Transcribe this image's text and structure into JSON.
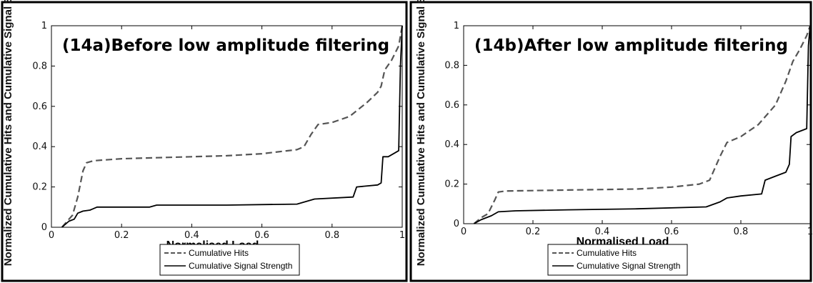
{
  "chart_data": [
    {
      "type": "line",
      "title": "(14a)Before low amplitude filtering",
      "xlabel": "Normalised Load",
      "ylabel": "Normalized Cumulative Hits and Cumulative Signal St",
      "xlim": [
        0,
        1
      ],
      "ylim": [
        0,
        1
      ],
      "xticks": [
        "0",
        "0.2",
        "0.4",
        "0.6",
        "0.8",
        "1"
      ],
      "yticks": [
        "0",
        "0.2",
        "0.4",
        "0.6",
        "0.8",
        "1"
      ],
      "grid": false,
      "legend_position": "bottom",
      "series": [
        {
          "name": "Cumulative Hits",
          "style": "dashed",
          "color": "#555555",
          "points": [
            [
              0.03,
              0
            ],
            [
              0.045,
              0.03
            ],
            [
              0.06,
              0.06
            ],
            [
              0.075,
              0.15
            ],
            [
              0.09,
              0.28
            ],
            [
              0.1,
              0.32
            ],
            [
              0.12,
              0.33
            ],
            [
              0.2,
              0.34
            ],
            [
              0.3,
              0.345
            ],
            [
              0.4,
              0.35
            ],
            [
              0.5,
              0.355
            ],
            [
              0.6,
              0.365
            ],
            [
              0.7,
              0.385
            ],
            [
              0.72,
              0.4
            ],
            [
              0.74,
              0.46
            ],
            [
              0.76,
              0.51
            ],
            [
              0.8,
              0.52
            ],
            [
              0.85,
              0.55
            ],
            [
              0.9,
              0.62
            ],
            [
              0.93,
              0.67
            ],
            [
              0.94,
              0.7
            ],
            [
              0.95,
              0.78
            ],
            [
              0.97,
              0.83
            ],
            [
              0.99,
              0.9
            ],
            [
              1,
              1
            ]
          ]
        },
        {
          "name": "Cumulative Signal Strength",
          "style": "solid",
          "color": "#000000",
          "points": [
            [
              0.03,
              0
            ],
            [
              0.05,
              0.03
            ],
            [
              0.065,
              0.04
            ],
            [
              0.075,
              0.07
            ],
            [
              0.09,
              0.08
            ],
            [
              0.11,
              0.085
            ],
            [
              0.13,
              0.1
            ],
            [
              0.28,
              0.1
            ],
            [
              0.3,
              0.11
            ],
            [
              0.5,
              0.11
            ],
            [
              0.7,
              0.115
            ],
            [
              0.75,
              0.14
            ],
            [
              0.86,
              0.15
            ],
            [
              0.87,
              0.2
            ],
            [
              0.93,
              0.21
            ],
            [
              0.94,
              0.22
            ],
            [
              0.945,
              0.35
            ],
            [
              0.96,
              0.35
            ],
            [
              0.98,
              0.37
            ],
            [
              0.99,
              0.38
            ],
            [
              0.995,
              0.8
            ],
            [
              1,
              1
            ]
          ]
        }
      ]
    },
    {
      "type": "line",
      "title": "(14b)After low amplitude filtering",
      "xlabel": "Normalised Load",
      "ylabel": "Normalized Cumulative Hits and Cumulative Signal St",
      "xlim": [
        0,
        1
      ],
      "ylim": [
        0,
        1
      ],
      "xticks": [
        "0",
        "0.2",
        "0.4",
        "0.6",
        "0.8",
        "1"
      ],
      "yticks": [
        "0",
        "0.2",
        "0.4",
        "0.6",
        "0.8",
        "1"
      ],
      "grid": false,
      "legend_position": "bottom",
      "series": [
        {
          "name": "Cumulative Hits",
          "style": "dashed",
          "color": "#555555",
          "points": [
            [
              0.03,
              0
            ],
            [
              0.05,
              0.03
            ],
            [
              0.07,
              0.05
            ],
            [
              0.09,
              0.12
            ],
            [
              0.1,
              0.16
            ],
            [
              0.12,
              0.165
            ],
            [
              0.3,
              0.17
            ],
            [
              0.5,
              0.175
            ],
            [
              0.6,
              0.185
            ],
            [
              0.68,
              0.2
            ],
            [
              0.71,
              0.22
            ],
            [
              0.74,
              0.34
            ],
            [
              0.76,
              0.41
            ],
            [
              0.8,
              0.44
            ],
            [
              0.85,
              0.5
            ],
            [
              0.9,
              0.6
            ],
            [
              0.93,
              0.72
            ],
            [
              0.95,
              0.82
            ],
            [
              0.97,
              0.88
            ],
            [
              0.99,
              0.95
            ],
            [
              1,
              1
            ]
          ]
        },
        {
          "name": "Cumulative Signal Strength",
          "style": "solid",
          "color": "#000000",
          "points": [
            [
              0.03,
              0
            ],
            [
              0.05,
              0.02
            ],
            [
              0.08,
              0.04
            ],
            [
              0.1,
              0.06
            ],
            [
              0.15,
              0.065
            ],
            [
              0.3,
              0.07
            ],
            [
              0.5,
              0.075
            ],
            [
              0.7,
              0.085
            ],
            [
              0.74,
              0.11
            ],
            [
              0.76,
              0.13
            ],
            [
              0.8,
              0.14
            ],
            [
              0.86,
              0.15
            ],
            [
              0.87,
              0.22
            ],
            [
              0.9,
              0.24
            ],
            [
              0.93,
              0.26
            ],
            [
              0.94,
              0.3
            ],
            [
              0.945,
              0.44
            ],
            [
              0.96,
              0.46
            ],
            [
              0.99,
              0.48
            ],
            [
              0.995,
              0.9
            ],
            [
              1,
              1
            ]
          ]
        }
      ]
    }
  ]
}
